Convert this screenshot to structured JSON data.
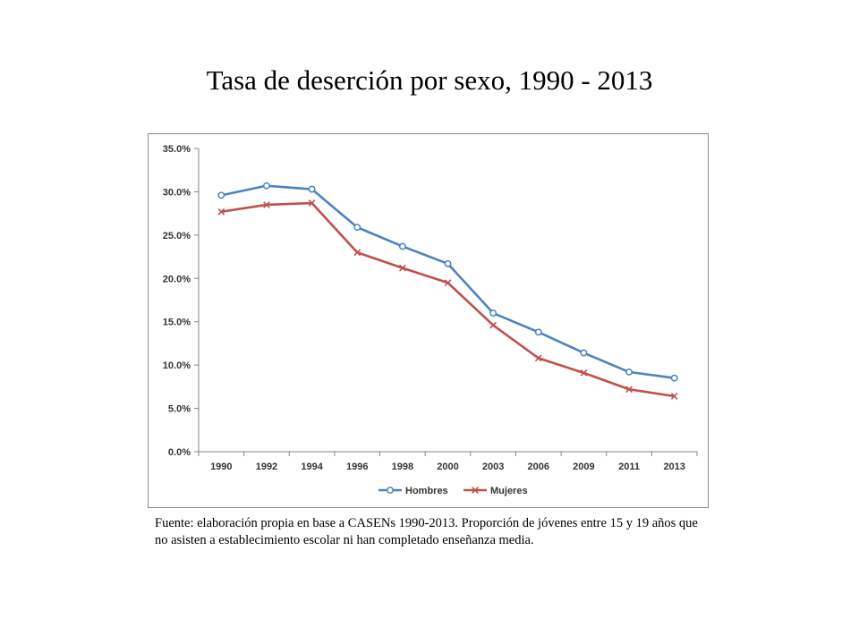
{
  "title": "Tasa de deserción por sexo, 1990 - 2013",
  "source_note": "Fuente: elaboración propia en base a CASENs 1990-2013. Proporción de jóvenes entre 15 y 19 años que no asisten a establecimiento escolar ni han completado enseñanza media.",
  "chart_data": {
    "type": "line",
    "categories": [
      "1990",
      "1992",
      "1994",
      "1996",
      "1998",
      "2000",
      "2003",
      "2006",
      "2009",
      "2011",
      "2013"
    ],
    "series": [
      {
        "name": "Hombres",
        "values": [
          29.6,
          30.7,
          30.3,
          25.9,
          23.7,
          21.7,
          16.0,
          13.8,
          11.4,
          9.2,
          8.5
        ],
        "color": "#4f81bd",
        "marker": "circle"
      },
      {
        "name": "Mujeres",
        "values": [
          27.7,
          28.5,
          28.7,
          23.0,
          21.2,
          19.5,
          14.6,
          10.8,
          9.1,
          7.2,
          6.4
        ],
        "color": "#c0504d",
        "marker": "x"
      }
    ],
    "yticks": [
      "0.0%",
      "5.0%",
      "10.0%",
      "15.0%",
      "20.0%",
      "25.0%",
      "30.0%",
      "35.0%"
    ],
    "ylim": [
      0,
      35
    ],
    "legend_position": "bottom",
    "grid": false
  }
}
